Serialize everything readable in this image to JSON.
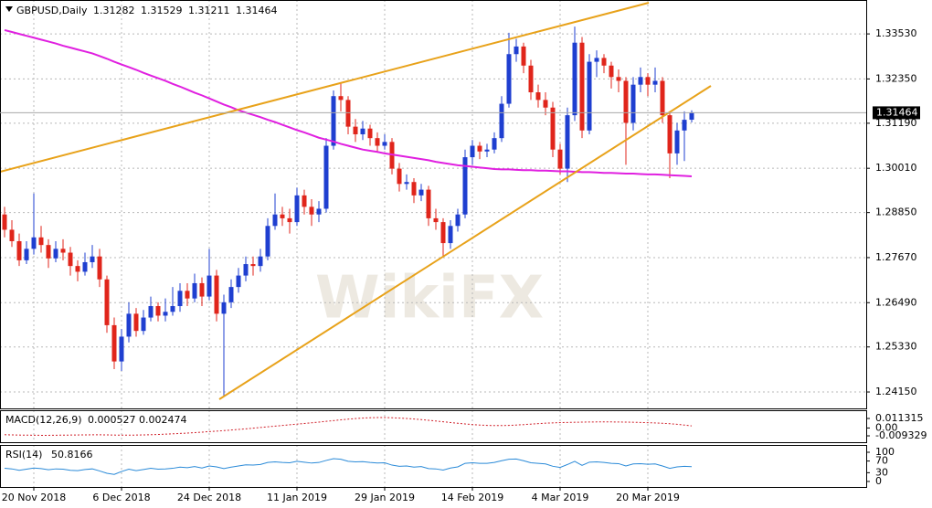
{
  "chart_data": {
    "type": "candlestick",
    "title": "GBPUSD,Daily",
    "watermark": "WikiFX",
    "up_color": "#1f3fd0",
    "down_color": "#e0251b",
    "grid": true,
    "categories": [
      null,
      null,
      null,
      null,
      "20 Nov 2018",
      null,
      null,
      null,
      null,
      null,
      null,
      null,
      null,
      null,
      null,
      null,
      "6 Dec 2018",
      null,
      null,
      null,
      null,
      null,
      null,
      null,
      null,
      null,
      null,
      null,
      "24 Dec 2018",
      null,
      null,
      null,
      null,
      null,
      null,
      null,
      null,
      null,
      null,
      null,
      "11 Jan 2019",
      null,
      null,
      null,
      null,
      null,
      null,
      null,
      null,
      null,
      null,
      null,
      "29 Jan 2019",
      null,
      null,
      null,
      null,
      null,
      null,
      null,
      null,
      null,
      null,
      null,
      "14 Feb 2019",
      null,
      null,
      null,
      null,
      null,
      null,
      null,
      null,
      null,
      null,
      null,
      "4 Mar 2019",
      null,
      null,
      null,
      null,
      null,
      null,
      null,
      null,
      null,
      null,
      null,
      "20 Mar 2019",
      null,
      null,
      null,
      null,
      null,
      null
    ],
    "candles": [
      [
        1.288,
        1.29,
        1.282,
        1.284
      ],
      [
        1.284,
        1.2865,
        1.2795,
        1.281
      ],
      [
        1.281,
        1.283,
        1.2745,
        1.276
      ],
      [
        1.276,
        1.281,
        1.275,
        1.279
      ],
      [
        1.279,
        1.2935,
        1.2775,
        1.282
      ],
      [
        1.282,
        1.285,
        1.278,
        1.28
      ],
      [
        1.28,
        1.2815,
        1.274,
        1.2765
      ],
      [
        1.2765,
        1.281,
        1.2755,
        1.279
      ],
      [
        1.279,
        1.2815,
        1.276,
        1.278
      ],
      [
        1.278,
        1.2795,
        1.272,
        1.2745
      ],
      [
        1.2745,
        1.276,
        1.2705,
        1.273
      ],
      [
        1.273,
        1.278,
        1.272,
        1.2755
      ],
      [
        1.2755,
        1.28,
        1.274,
        1.277
      ],
      [
        1.277,
        1.279,
        1.269,
        1.271
      ],
      [
        1.271,
        1.272,
        1.257,
        1.259
      ],
      [
        1.259,
        1.261,
        1.2475,
        1.2495
      ],
      [
        1.2495,
        1.258,
        1.247,
        1.256
      ],
      [
        1.256,
        1.265,
        1.2545,
        1.262
      ],
      [
        1.262,
        1.2635,
        1.256,
        1.2575
      ],
      [
        1.2575,
        1.263,
        1.2565,
        1.261
      ],
      [
        1.261,
        1.2665,
        1.26,
        1.264
      ],
      [
        1.264,
        1.265,
        1.26,
        1.2615
      ],
      [
        1.2615,
        1.266,
        1.26,
        1.2625
      ],
      [
        1.2625,
        1.269,
        1.2615,
        1.264
      ],
      [
        1.264,
        1.27,
        1.2625,
        1.268
      ],
      [
        1.268,
        1.27,
        1.264,
        1.266
      ],
      [
        1.266,
        1.2725,
        1.265,
        1.27
      ],
      [
        1.27,
        1.2715,
        1.264,
        1.2665
      ],
      [
        1.2665,
        1.279,
        1.2655,
        1.272
      ],
      [
        1.272,
        1.2735,
        1.26,
        1.262
      ],
      [
        1.262,
        1.267,
        1.2405,
        1.265
      ],
      [
        1.265,
        1.271,
        1.2635,
        1.269
      ],
      [
        1.269,
        1.274,
        1.2675,
        1.272
      ],
      [
        1.272,
        1.277,
        1.2705,
        1.275
      ],
      [
        1.275,
        1.277,
        1.272,
        1.2745
      ],
      [
        1.2745,
        1.279,
        1.273,
        1.277
      ],
      [
        1.277,
        1.287,
        1.276,
        1.285
      ],
      [
        1.285,
        1.2935,
        1.284,
        1.288
      ],
      [
        1.288,
        1.29,
        1.285,
        1.287
      ],
      [
        1.287,
        1.2895,
        1.283,
        1.286
      ],
      [
        1.286,
        1.295,
        1.285,
        1.293
      ],
      [
        1.293,
        1.2945,
        1.288,
        1.29
      ],
      [
        1.29,
        1.292,
        1.285,
        1.288
      ],
      [
        1.288,
        1.2915,
        1.286,
        1.2895
      ],
      [
        1.2895,
        1.308,
        1.2885,
        1.306
      ],
      [
        1.306,
        1.3205,
        1.305,
        1.319
      ],
      [
        1.319,
        1.3225,
        1.315,
        1.318
      ],
      [
        1.318,
        1.319,
        1.309,
        1.311
      ],
      [
        1.311,
        1.313,
        1.307,
        1.309
      ],
      [
        1.309,
        1.3125,
        1.3075,
        1.3105
      ],
      [
        1.3105,
        1.3115,
        1.306,
        1.308
      ],
      [
        1.308,
        1.3095,
        1.3045,
        1.306
      ],
      [
        1.306,
        1.309,
        1.305,
        1.307
      ],
      [
        1.307,
        1.308,
        1.2985,
        1.3
      ],
      [
        1.3,
        1.3015,
        1.294,
        1.296
      ],
      [
        1.296,
        1.2985,
        1.2945,
        1.2965
      ],
      [
        1.2965,
        1.2975,
        1.291,
        1.293
      ],
      [
        1.293,
        1.296,
        1.2915,
        1.2945
      ],
      [
        1.2945,
        1.2955,
        1.285,
        1.287
      ],
      [
        1.287,
        1.2895,
        1.284,
        1.286
      ],
      [
        1.286,
        1.287,
        1.277,
        1.2805
      ],
      [
        1.2805,
        1.2865,
        1.279,
        1.285
      ],
      [
        1.285,
        1.2895,
        1.2835,
        1.288
      ],
      [
        1.288,
        1.305,
        1.287,
        1.303
      ],
      [
        1.303,
        1.3075,
        1.301,
        1.306
      ],
      [
        1.306,
        1.307,
        1.3025,
        1.3045
      ],
      [
        1.3045,
        1.3065,
        1.303,
        1.305
      ],
      [
        1.305,
        1.3095,
        1.304,
        1.308
      ],
      [
        1.308,
        1.319,
        1.307,
        1.317
      ],
      [
        1.317,
        1.3356,
        1.316,
        1.33
      ],
      [
        1.33,
        1.334,
        1.328,
        1.332
      ],
      [
        1.332,
        1.333,
        1.325,
        1.327
      ],
      [
        1.327,
        1.3285,
        1.318,
        1.32
      ],
      [
        1.32,
        1.322,
        1.316,
        1.318
      ],
      [
        1.318,
        1.32,
        1.314,
        1.316
      ],
      [
        1.316,
        1.3175,
        1.303,
        1.305
      ],
      [
        1.305,
        1.3065,
        1.2985,
        1.3
      ],
      [
        1.3,
        1.316,
        1.2965,
        1.314
      ],
      [
        1.314,
        1.3372,
        1.3125,
        1.333
      ],
      [
        1.333,
        1.3345,
        1.308,
        1.31
      ],
      [
        1.31,
        1.33,
        1.309,
        1.328
      ],
      [
        1.328,
        1.331,
        1.324,
        1.329
      ],
      [
        1.329,
        1.33,
        1.325,
        1.327
      ],
      [
        1.327,
        1.328,
        1.321,
        1.324
      ],
      [
        1.324,
        1.326,
        1.32,
        1.323
      ],
      [
        1.323,
        1.324,
        1.301,
        1.312
      ],
      [
        1.312,
        1.324,
        1.31,
        1.322
      ],
      [
        1.322,
        1.3265,
        1.32,
        1.324
      ],
      [
        1.324,
        1.325,
        1.319,
        1.322
      ],
      [
        1.322,
        1.3265,
        1.32,
        1.323
      ],
      [
        1.323,
        1.324,
        1.312,
        1.314
      ],
      [
        1.314,
        1.315,
        1.2975,
        1.304
      ],
      [
        1.304,
        1.312,
        1.301,
        1.31
      ],
      [
        1.31,
        1.315,
        1.302,
        1.3128
      ],
      [
        1.31282,
        1.31529,
        1.31211,
        1.31464
      ]
    ],
    "moving_average": {
      "color": "#e020e0",
      "values": [
        1.3363,
        1.3358,
        1.3353,
        1.3348,
        1.3343,
        1.3338,
        1.3333,
        1.3328,
        1.3322,
        1.3317,
        1.3312,
        1.3307,
        1.3302,
        1.3295,
        1.3288,
        1.328,
        1.3273,
        1.3266,
        1.3259,
        1.3251,
        1.3244,
        1.3237,
        1.323,
        1.3222,
        1.3215,
        1.3207,
        1.3199,
        1.3192,
        1.3184,
        1.3176,
        1.3168,
        1.3161,
        1.3153,
        1.3147,
        1.3141,
        1.3135,
        1.3128,
        1.3122,
        1.3115,
        1.3108,
        1.3101,
        1.3095,
        1.3088,
        1.3081,
        1.3076,
        1.3071,
        1.3065,
        1.306,
        1.3055,
        1.305,
        1.3047,
        1.3044,
        1.304,
        1.3037,
        1.3034,
        1.3031,
        1.3028,
        1.3025,
        1.3022,
        1.3018,
        1.3015,
        1.3012,
        1.3009,
        1.3007,
        1.3005,
        1.3003,
        1.3001,
        1.2999,
        1.2998,
        1.2998,
        1.2997,
        1.2996,
        1.2996,
        1.2995,
        1.2995,
        1.2994,
        1.2993,
        1.2993,
        1.2992,
        1.2991,
        1.2991,
        1.299,
        1.2989,
        1.2989,
        1.2988,
        1.2987,
        1.2987,
        1.2986,
        1.2985,
        1.2985,
        1.2984,
        1.2983,
        1.2982,
        1.2981,
        1.298
      ]
    },
    "ylim": [
      1.2372,
      1.3437
    ],
    "yticks": [
      {
        "value": 1.3353,
        "label": "1.33530"
      },
      {
        "value": 1.3235,
        "label": "1.32350"
      },
      {
        "value": 1.3119,
        "label": "1.31190"
      },
      {
        "value": 1.3001,
        "label": "1.30010"
      },
      {
        "value": 1.2885,
        "label": "1.28850"
      },
      {
        "value": 1.2767,
        "label": "1.27670"
      },
      {
        "value": 1.2649,
        "label": "1.26490"
      },
      {
        "value": 1.2533,
        "label": "1.25330"
      },
      {
        "value": 1.2415,
        "label": "1.24150"
      }
    ],
    "macd": {
      "label": "MACD(12,26,9)",
      "main": 0.000527,
      "color": "#d0202a",
      "signal": [
        -0.008,
        -0.0082,
        -0.0084,
        -0.0085,
        -0.0086,
        -0.0087,
        -0.0087,
        -0.0086,
        -0.0085,
        -0.0084,
        -0.0083,
        -0.0082,
        -0.0081,
        -0.0081,
        -0.0082,
        -0.0084,
        -0.0085,
        -0.0085,
        -0.0084,
        -0.0082,
        -0.008,
        -0.0077,
        -0.0073,
        -0.0069,
        -0.0065,
        -0.006,
        -0.0055,
        -0.0049,
        -0.0043,
        -0.0037,
        -0.0031,
        -0.0024,
        -0.0017,
        -0.001,
        -0.0002,
        0.0006,
        0.0014,
        0.0022,
        0.003,
        0.0038,
        0.0046,
        0.0054,
        0.0062,
        0.007,
        0.0079,
        0.0088,
        0.0097,
        0.0105,
        0.0112,
        0.0118,
        0.0122,
        0.0124,
        0.0124,
        0.0122,
        0.0118,
        0.0113,
        0.0107,
        0.01,
        0.0092,
        0.0083,
        0.0074,
        0.0065,
        0.0056,
        0.0048,
        0.0041,
        0.0035,
        0.0031,
        0.0029,
        0.0029,
        0.0031,
        0.0035,
        0.004,
        0.0046,
        0.0052,
        0.0057,
        0.0061,
        0.0064,
        0.0066,
        0.0068,
        0.007,
        0.0071,
        0.0072,
        0.0072,
        0.0072,
        0.0071,
        0.007,
        0.0068,
        0.0066,
        0.0063,
        0.006,
        0.0056,
        0.0051,
        0.0044,
        0.0035,
        0.002474
      ],
      "ylim": [
        -0.0169,
        0.0211
      ],
      "yticks": [
        0.011315,
        {
          "value": 0,
          "label": "0.00"
        },
        -0.009329
      ]
    },
    "rsi": {
      "label": "RSI(14)",
      "color": "#2a8ad8",
      "values": [
        45,
        43,
        38,
        42,
        46,
        44,
        40,
        43,
        42,
        38,
        37,
        41,
        43,
        36,
        28,
        24,
        34,
        42,
        37,
        41,
        45,
        42,
        43,
        45,
        49,
        47,
        51,
        46,
        53,
        50,
        44,
        49,
        53,
        57,
        56,
        58,
        65,
        67,
        65,
        64,
        69,
        66,
        63,
        65,
        72,
        78,
        76,
        69,
        67,
        68,
        65,
        63,
        64,
        56,
        52,
        53,
        49,
        51,
        44,
        43,
        39,
        46,
        50,
        62,
        64,
        62,
        62,
        65,
        71,
        76,
        77,
        71,
        64,
        62,
        60,
        52,
        48,
        58,
        69,
        55,
        66,
        67,
        65,
        62,
        61,
        53,
        60,
        61,
        59,
        60,
        53,
        45,
        50,
        52,
        50.8166
      ],
      "ylim": [
        -19,
        125
      ],
      "yticks": [
        100,
        70,
        30,
        0
      ]
    }
  }
}
